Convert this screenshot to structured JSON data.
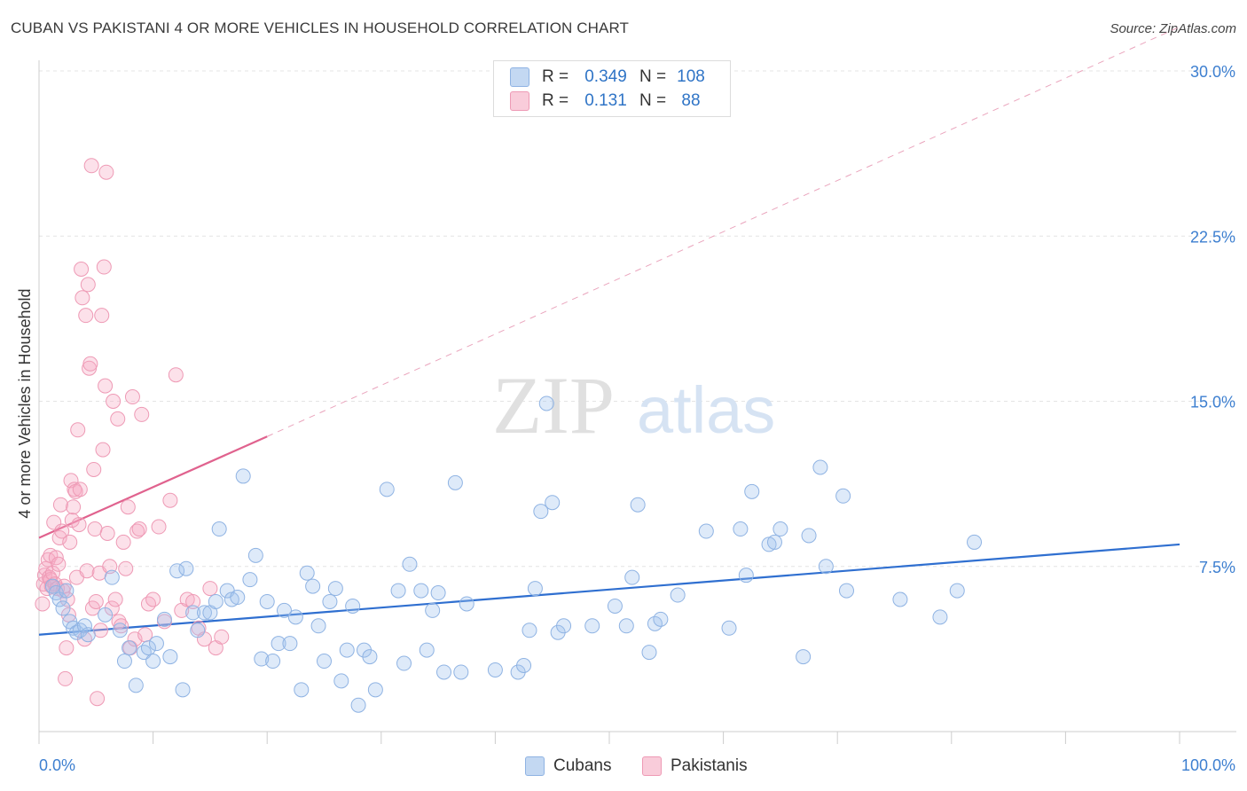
{
  "header": {
    "title": "CUBAN VS PAKISTANI 4 OR MORE VEHICLES IN HOUSEHOLD CORRELATION CHART",
    "source": "Source: ZipAtlas.com"
  },
  "watermark": {
    "zip": "ZIP",
    "atlas": "atlas"
  },
  "legend": {
    "rows": [
      {
        "r_label": "R =",
        "r_value": "0.349",
        "n_label": "N =",
        "n_value": "108",
        "color": "#aecbef"
      },
      {
        "r_label": "R =",
        "r_value": "0.131",
        "n_label": "N =",
        "n_value": "88",
        "color": "#f5b8cb"
      }
    ]
  },
  "bottom_legend": [
    {
      "label": "Cubans",
      "color": "#aecbef"
    },
    {
      "label": "Pakistanis",
      "color": "#f5b8cb"
    }
  ],
  "chart_data": {
    "type": "scatter",
    "title": "CUBAN VS PAKISTANI 4 OR MORE VEHICLES IN HOUSEHOLD CORRELATION CHART",
    "xlabel": "",
    "ylabel": "4 or more Vehicles in Household",
    "xlim": [
      0,
      100
    ],
    "ylim": [
      0,
      30
    ],
    "x_tick_labels": [
      "0.0%",
      "100.0%"
    ],
    "y_ticks": [
      7.5,
      15.0,
      22.5,
      30.0
    ],
    "y_tick_labels": [
      "7.5%",
      "15.0%",
      "22.5%",
      "30.0%"
    ],
    "grid": true,
    "legend_position": "top-center",
    "colors": {
      "Cubans": "#3a7bd5",
      "Pakistanis": "#e8739a"
    },
    "series": [
      {
        "name": "Cubans",
        "trend": {
          "x": [
            0,
            100
          ],
          "y": [
            4.4,
            8.5
          ]
        },
        "points": [
          [
            1.2,
            6.6
          ],
          [
            1.5,
            6.3
          ],
          [
            1.8,
            6.0
          ],
          [
            2.1,
            5.6
          ],
          [
            2.4,
            6.4
          ],
          [
            2.7,
            5.0
          ],
          [
            3.0,
            4.7
          ],
          [
            3.3,
            4.5
          ],
          [
            3.6,
            4.6
          ],
          [
            4.0,
            4.8
          ],
          [
            4.3,
            4.4
          ],
          [
            5.8,
            5.3
          ],
          [
            6.4,
            7.0
          ],
          [
            7.1,
            4.6
          ],
          [
            7.5,
            3.2
          ],
          [
            7.9,
            3.8
          ],
          [
            8.5,
            2.1
          ],
          [
            9.2,
            3.6
          ],
          [
            9.6,
            3.8
          ],
          [
            10.0,
            3.2
          ],
          [
            10.3,
            4.0
          ],
          [
            11.0,
            5.1
          ],
          [
            11.5,
            3.4
          ],
          [
            12.1,
            7.3
          ],
          [
            12.6,
            1.9
          ],
          [
            12.9,
            7.4
          ],
          [
            13.5,
            5.4
          ],
          [
            13.9,
            4.6
          ],
          [
            14.5,
            5.4
          ],
          [
            15.0,
            5.4
          ],
          [
            15.5,
            5.9
          ],
          [
            15.8,
            9.2
          ],
          [
            16.5,
            6.4
          ],
          [
            16.9,
            6.0
          ],
          [
            17.4,
            6.1
          ],
          [
            17.9,
            11.6
          ],
          [
            18.5,
            6.9
          ],
          [
            19.0,
            8.0
          ],
          [
            19.5,
            3.3
          ],
          [
            20.0,
            5.9
          ],
          [
            20.5,
            3.2
          ],
          [
            21.0,
            4.0
          ],
          [
            21.5,
            5.5
          ],
          [
            22.0,
            4.0
          ],
          [
            22.5,
            5.2
          ],
          [
            23.0,
            1.9
          ],
          [
            23.5,
            7.2
          ],
          [
            24.0,
            6.6
          ],
          [
            24.5,
            4.8
          ],
          [
            25.0,
            3.2
          ],
          [
            25.5,
            5.9
          ],
          [
            26.0,
            6.5
          ],
          [
            26.5,
            2.3
          ],
          [
            27.0,
            3.7
          ],
          [
            27.5,
            5.7
          ],
          [
            28.0,
            1.2
          ],
          [
            28.5,
            3.7
          ],
          [
            29.0,
            3.4
          ],
          [
            29.5,
            1.9
          ],
          [
            30.5,
            11.0
          ],
          [
            31.5,
            6.4
          ],
          [
            32.0,
            3.1
          ],
          [
            32.5,
            7.6
          ],
          [
            33.5,
            6.4
          ],
          [
            34.0,
            3.7
          ],
          [
            34.5,
            5.5
          ],
          [
            35.0,
            6.3
          ],
          [
            35.5,
            2.7
          ],
          [
            36.5,
            11.3
          ],
          [
            37.0,
            2.7
          ],
          [
            37.5,
            5.8
          ],
          [
            40.0,
            2.8
          ],
          [
            42.0,
            2.7
          ],
          [
            42.5,
            3.0
          ],
          [
            43.0,
            4.6
          ],
          [
            43.5,
            6.5
          ],
          [
            44.0,
            10.0
          ],
          [
            44.5,
            14.9
          ],
          [
            45.0,
            10.4
          ],
          [
            45.5,
            4.5
          ],
          [
            46.0,
            4.8
          ],
          [
            48.5,
            4.8
          ],
          [
            50.5,
            5.7
          ],
          [
            51.5,
            4.8
          ],
          [
            52.0,
            7.0
          ],
          [
            52.5,
            10.3
          ],
          [
            53.5,
            3.6
          ],
          [
            54.0,
            4.9
          ],
          [
            54.5,
            5.1
          ],
          [
            56.0,
            6.2
          ],
          [
            58.5,
            9.1
          ],
          [
            60.5,
            4.7
          ],
          [
            61.5,
            9.2
          ],
          [
            62.0,
            7.1
          ],
          [
            62.5,
            10.9
          ],
          [
            64.0,
            8.5
          ],
          [
            64.5,
            8.6
          ],
          [
            65.0,
            9.2
          ],
          [
            67.0,
            3.4
          ],
          [
            67.5,
            8.9
          ],
          [
            68.5,
            12.0
          ],
          [
            69.0,
            7.5
          ],
          [
            70.5,
            10.7
          ],
          [
            70.8,
            6.4
          ],
          [
            75.5,
            6.0
          ],
          [
            79.0,
            5.2
          ],
          [
            80.5,
            6.4
          ],
          [
            82.0,
            8.6
          ]
        ]
      },
      {
        "name": "Pakistanis",
        "trend": {
          "x": [
            0,
            20
          ],
          "y": [
            8.8,
            13.4
          ]
        },
        "trend_extension": {
          "x": [
            20,
            100
          ],
          "y": [
            13.4,
            32.0
          ]
        },
        "points": [
          [
            0.3,
            5.8
          ],
          [
            0.4,
            6.7
          ],
          [
            0.5,
            7.1
          ],
          [
            0.6,
            7.4
          ],
          [
            0.7,
            6.5
          ],
          [
            0.8,
            7.8
          ],
          [
            0.9,
            7.0
          ],
          [
            1.0,
            8.0
          ],
          [
            1.0,
            6.9
          ],
          [
            1.1,
            6.6
          ],
          [
            1.2,
            7.2
          ],
          [
            1.3,
            9.5
          ],
          [
            1.4,
            6.7
          ],
          [
            1.5,
            7.9
          ],
          [
            1.6,
            6.5
          ],
          [
            1.7,
            7.6
          ],
          [
            1.8,
            8.8
          ],
          [
            1.9,
            10.3
          ],
          [
            2.0,
            9.1
          ],
          [
            2.1,
            6.4
          ],
          [
            2.2,
            6.6
          ],
          [
            2.3,
            2.4
          ],
          [
            2.4,
            3.8
          ],
          [
            2.5,
            6.0
          ],
          [
            2.6,
            5.3
          ],
          [
            2.7,
            8.6
          ],
          [
            2.8,
            11.4
          ],
          [
            2.9,
            9.6
          ],
          [
            3.0,
            10.2
          ],
          [
            3.1,
            11.0
          ],
          [
            3.2,
            10.9
          ],
          [
            3.3,
            7.0
          ],
          [
            3.4,
            13.7
          ],
          [
            3.5,
            9.4
          ],
          [
            3.6,
            11.0
          ],
          [
            3.7,
            21.0
          ],
          [
            3.8,
            19.7
          ],
          [
            4.0,
            4.2
          ],
          [
            4.1,
            18.9
          ],
          [
            4.2,
            7.3
          ],
          [
            4.3,
            20.3
          ],
          [
            4.4,
            16.5
          ],
          [
            4.5,
            16.7
          ],
          [
            4.6,
            25.7
          ],
          [
            4.7,
            5.6
          ],
          [
            4.8,
            11.9
          ],
          [
            4.9,
            9.2
          ],
          [
            5.0,
            5.9
          ],
          [
            5.1,
            1.5
          ],
          [
            5.3,
            7.2
          ],
          [
            5.4,
            4.6
          ],
          [
            5.5,
            18.9
          ],
          [
            5.6,
            12.8
          ],
          [
            5.7,
            21.1
          ],
          [
            5.8,
            15.7
          ],
          [
            5.9,
            25.4
          ],
          [
            6.0,
            9.0
          ],
          [
            6.2,
            7.5
          ],
          [
            6.4,
            5.6
          ],
          [
            6.5,
            15.0
          ],
          [
            6.7,
            6.0
          ],
          [
            6.9,
            14.2
          ],
          [
            7.0,
            5.0
          ],
          [
            7.2,
            4.8
          ],
          [
            7.4,
            8.6
          ],
          [
            7.6,
            7.4
          ],
          [
            7.8,
            10.2
          ],
          [
            8.0,
            3.8
          ],
          [
            8.2,
            15.2
          ],
          [
            8.4,
            4.2
          ],
          [
            8.6,
            9.1
          ],
          [
            8.8,
            9.2
          ],
          [
            9.0,
            14.4
          ],
          [
            9.3,
            4.4
          ],
          [
            9.6,
            5.8
          ],
          [
            10.0,
            6.0
          ],
          [
            10.5,
            9.3
          ],
          [
            11.0,
            5.0
          ],
          [
            11.5,
            10.5
          ],
          [
            12.0,
            16.2
          ],
          [
            12.5,
            5.5
          ],
          [
            13.0,
            6.0
          ],
          [
            13.5,
            5.9
          ],
          [
            14.0,
            4.7
          ],
          [
            14.5,
            4.2
          ],
          [
            15.0,
            6.5
          ],
          [
            15.5,
            3.8
          ],
          [
            16.0,
            4.3
          ]
        ]
      }
    ]
  }
}
